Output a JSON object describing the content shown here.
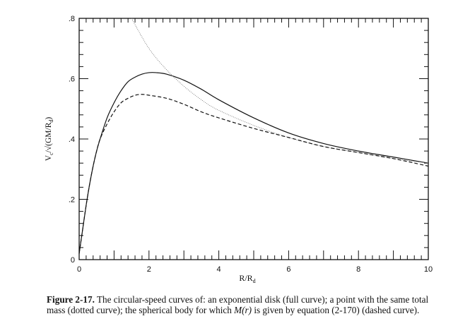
{
  "chart_data": {
    "type": "line",
    "xlabel": "R/R",
    "xlabel_sub": "d",
    "ylabel_parts": [
      "V",
      "c",
      "/√(GM/R",
      "d",
      ")"
    ],
    "xlim": [
      0,
      10
    ],
    "ylim": [
      0,
      0.8
    ],
    "x_ticks": [
      0,
      2,
      4,
      6,
      8,
      10
    ],
    "x_tick_labels": [
      "0",
      "2",
      "4",
      "6",
      "8",
      "10"
    ],
    "y_ticks": [
      0,
      0.2,
      0.4,
      0.6,
      0.8
    ],
    "y_tick_labels": [
      "0",
      ".2",
      ".4",
      ".6",
      ".8"
    ],
    "grid": false,
    "series": [
      {
        "style": "solid",
        "color": "#111111",
        "points": [
          [
            0,
            0.02
          ],
          [
            0.1,
            0.1
          ],
          [
            0.2,
            0.18
          ],
          [
            0.3,
            0.25
          ],
          [
            0.4,
            0.31
          ],
          [
            0.5,
            0.36
          ],
          [
            0.6,
            0.4
          ],
          [
            0.8,
            0.47
          ],
          [
            1.0,
            0.52
          ],
          [
            1.2,
            0.56
          ],
          [
            1.4,
            0.59
          ],
          [
            1.6,
            0.605
          ],
          [
            1.8,
            0.615
          ],
          [
            2.0,
            0.62
          ],
          [
            2.2,
            0.62
          ],
          [
            2.5,
            0.615
          ],
          [
            3.0,
            0.595
          ],
          [
            3.5,
            0.565
          ],
          [
            4.0,
            0.53
          ],
          [
            5.0,
            0.47
          ],
          [
            6.0,
            0.42
          ],
          [
            7.0,
            0.385
          ],
          [
            8.0,
            0.36
          ],
          [
            9.0,
            0.34
          ],
          [
            10.0,
            0.32
          ]
        ]
      },
      {
        "style": "dotted",
        "color": "#777777",
        "points": [
          [
            1.5,
            0.8
          ],
          [
            2.0,
            0.7
          ],
          [
            2.5,
            0.63
          ],
          [
            3.0,
            0.575
          ],
          [
            3.5,
            0.53
          ],
          [
            4.0,
            0.495
          ],
          [
            5.0,
            0.445
          ],
          [
            6.0,
            0.405
          ],
          [
            7.0,
            0.375
          ],
          [
            8.0,
            0.355
          ],
          [
            9.0,
            0.335
          ],
          [
            10.0,
            0.32
          ]
        ]
      },
      {
        "style": "dashed",
        "color": "#111111",
        "points": [
          [
            0,
            0.02
          ],
          [
            0.1,
            0.1
          ],
          [
            0.2,
            0.18
          ],
          [
            0.3,
            0.25
          ],
          [
            0.4,
            0.31
          ],
          [
            0.5,
            0.36
          ],
          [
            0.6,
            0.4
          ],
          [
            0.8,
            0.45
          ],
          [
            1.0,
            0.49
          ],
          [
            1.2,
            0.52
          ],
          [
            1.4,
            0.535
          ],
          [
            1.6,
            0.545
          ],
          [
            1.8,
            0.548
          ],
          [
            2.0,
            0.545
          ],
          [
            2.5,
            0.535
          ],
          [
            3.0,
            0.515
          ],
          [
            3.5,
            0.49
          ],
          [
            4.0,
            0.47
          ],
          [
            5.0,
            0.435
          ],
          [
            6.0,
            0.405
          ],
          [
            7.0,
            0.375
          ],
          [
            8.0,
            0.355
          ],
          [
            9.0,
            0.335
          ],
          [
            10.0,
            0.31
          ]
        ]
      }
    ]
  },
  "caption": {
    "label": "Figure 2-17.",
    "text": " The circular-speed curves of: an exponential disk (full curve); a point with the same total mass (dotted curve); the spherical body for which ",
    "math": "M(r)",
    "text_end": " is given by equation (2-170) (dashed curve)."
  }
}
